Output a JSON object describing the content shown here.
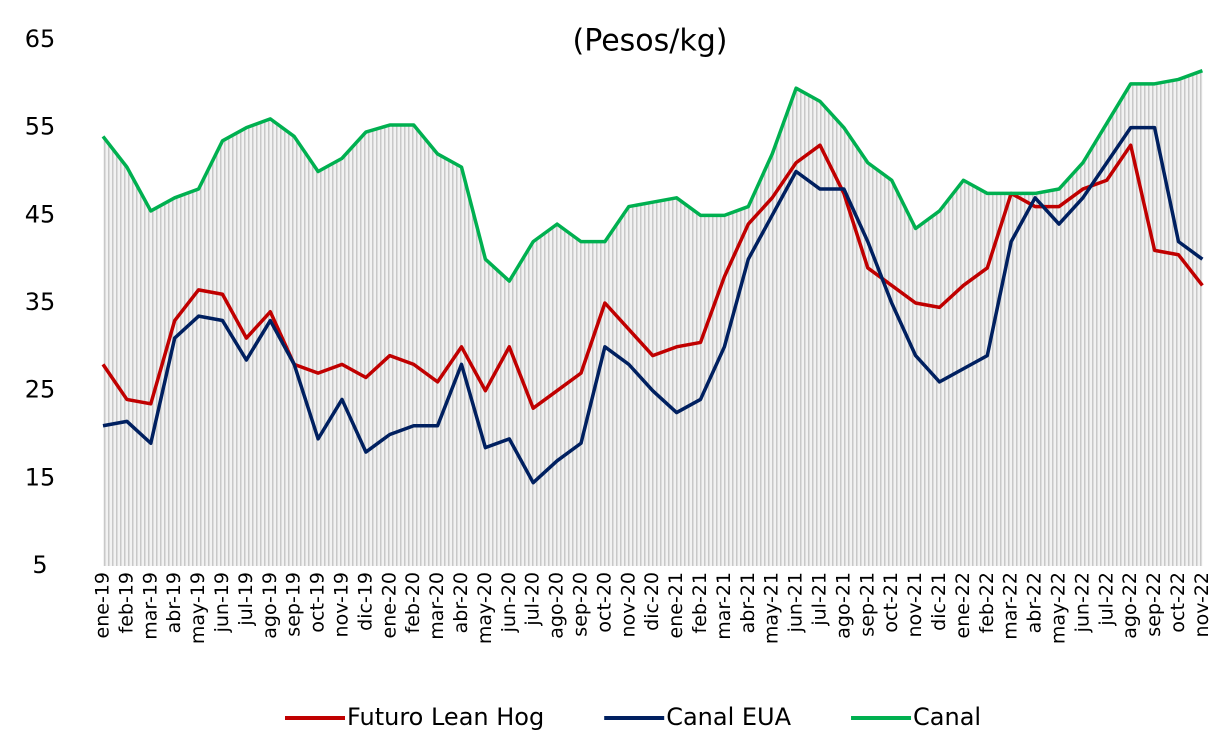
{
  "chart_data": {
    "type": "line",
    "title": "(Pesos/kg)",
    "categories": [
      "ene-19",
      "feb-19",
      "mar-19",
      "abr-19",
      "may-19",
      "jun-19",
      "jul-19",
      "ago-19",
      "sep-19",
      "oct-19",
      "nov-19",
      "dic-19",
      "ene-20",
      "feb-20",
      "mar-20",
      "abr-20",
      "may-20",
      "jun-20",
      "jul-20",
      "ago-20",
      "sep-20",
      "oct-20",
      "nov-20",
      "dic-20",
      "ene-21",
      "feb-21",
      "mar-21",
      "abr-21",
      "may-21",
      "jun-21",
      "jul-21",
      "ago-21",
      "sep-21",
      "oct-21",
      "nov-21",
      "dic-21",
      "ene-22",
      "feb-22",
      "mar-22",
      "abr-22",
      "may-22",
      "jun-22",
      "jul-22",
      "ago-22",
      "sep-22",
      "oct-22",
      "nov-22"
    ],
    "series": [
      {
        "name": "Futuro Lean Hog",
        "color": "#c00000",
        "values": [
          28,
          24,
          23.5,
          33,
          36.5,
          36,
          31,
          34,
          28,
          27,
          28,
          26.5,
          29,
          28,
          26,
          30,
          25,
          30,
          23,
          25,
          27,
          35,
          32,
          29,
          30,
          30.5,
          38,
          44,
          47,
          51,
          53,
          47.5,
          39,
          37,
          35,
          34.5,
          37,
          39,
          47.5,
          46,
          46,
          48,
          49,
          53,
          41,
          40.5,
          37
        ]
      },
      {
        "name": "Canal EUA",
        "color": "#002060",
        "values": [
          21,
          21.5,
          19,
          31,
          33.5,
          33,
          28.5,
          33,
          28,
          19.5,
          24,
          18,
          20,
          21,
          21,
          28,
          18.5,
          19.5,
          14.5,
          17,
          19,
          30,
          28,
          25,
          22.5,
          24,
          30,
          40,
          45,
          50,
          48,
          48,
          42,
          35,
          29,
          26,
          27.5,
          29,
          42,
          47,
          44,
          47,
          51,
          55,
          55,
          42,
          40
        ]
      },
      {
        "name": "Canal",
        "color": "#00b050",
        "area_color": "#d9d9d9",
        "values": [
          54,
          50.5,
          45.5,
          47,
          48,
          53.5,
          55,
          56,
          54,
          50,
          51.5,
          54.5,
          55.3,
          55.3,
          52,
          50.5,
          40,
          37.5,
          42,
          44,
          42,
          42,
          46,
          46.5,
          47,
          45,
          45,
          46,
          52,
          59.5,
          58,
          55,
          51,
          49,
          43.5,
          45.5,
          49,
          47.5,
          47.5,
          47.5,
          48,
          51,
          55.5,
          60,
          60,
          60.5,
          61.5
        ]
      }
    ],
    "ylim": [
      5,
      65
    ],
    "yticks": [
      5,
      15,
      25,
      35,
      45,
      55,
      65
    ],
    "grid": false,
    "legend": "bottom"
  }
}
